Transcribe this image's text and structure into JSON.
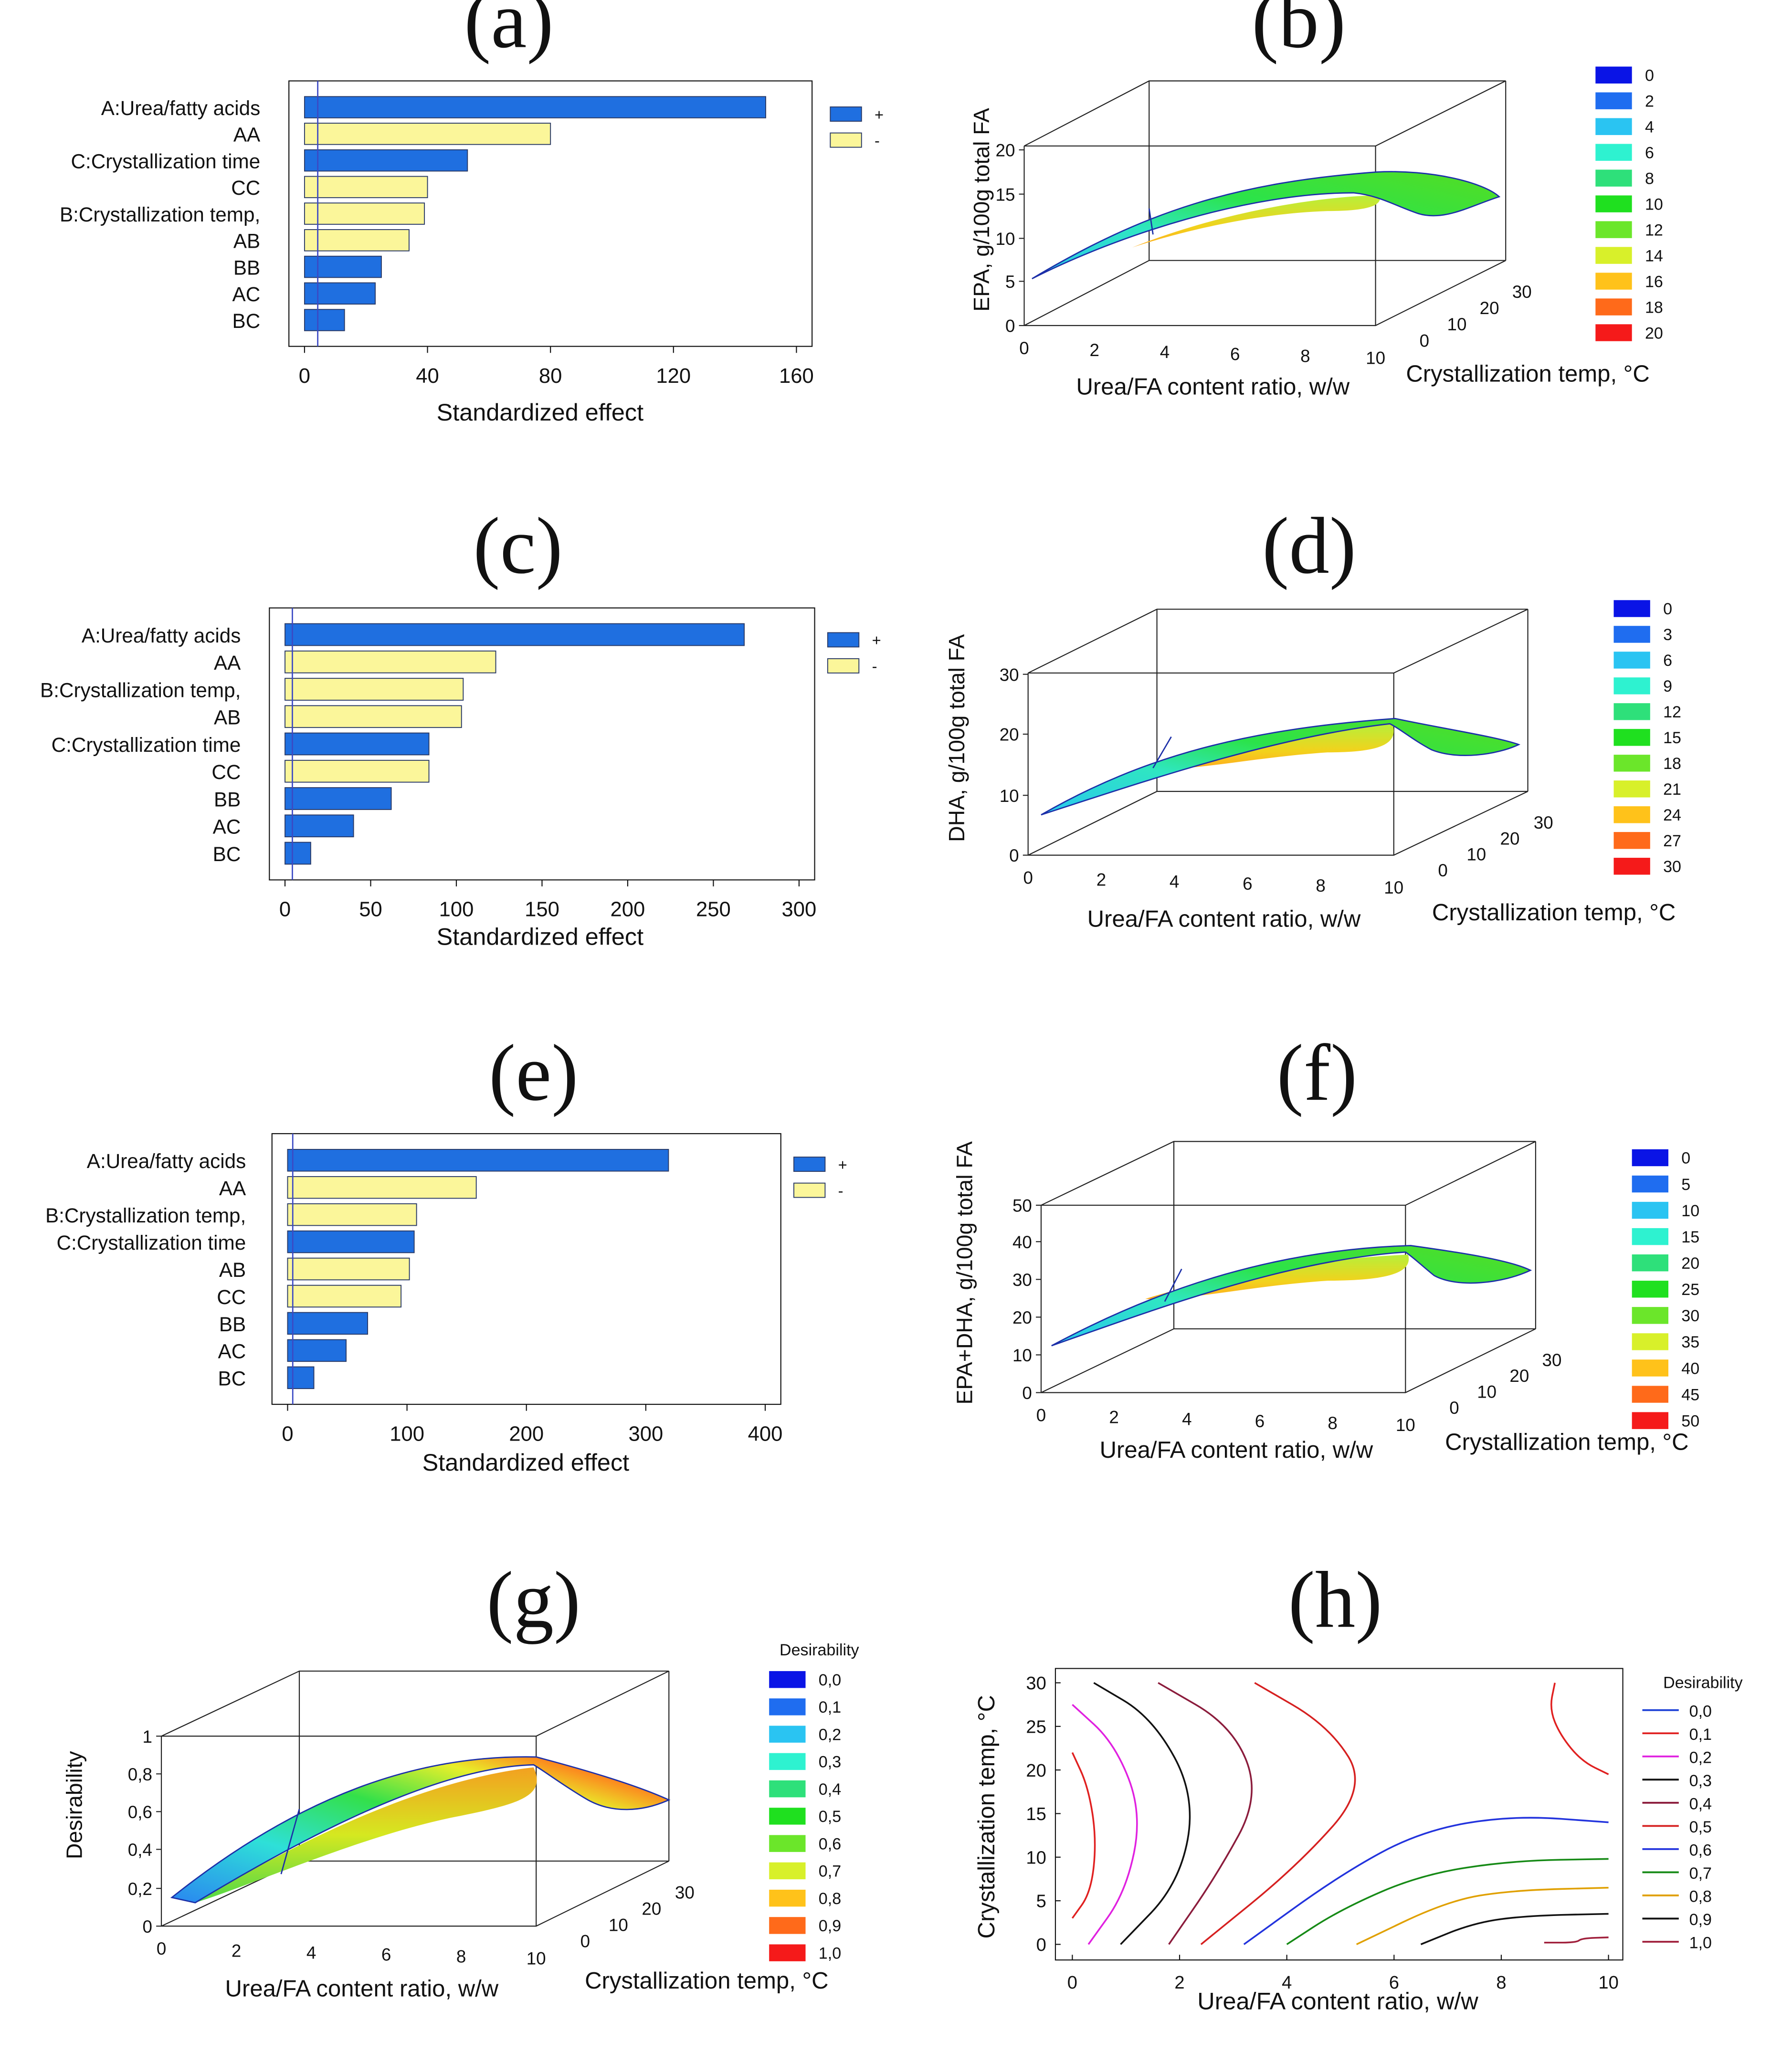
{
  "chart_data": [
    {
      "panel": "(a)",
      "type": "bar",
      "orientation": "horizontal",
      "title": "",
      "xlabel": "Standardized effect",
      "xlim": [
        0,
        160
      ],
      "xticks": [
        "0",
        "40",
        "80",
        "120",
        "160"
      ],
      "legend": [
        {
          "label": "+",
          "color": "#1f6fe0"
        },
        {
          "label": "-",
          "color": "#fbf69a"
        }
      ],
      "categories": [
        "A:Urea/fatty acids",
        "AA",
        "C:Crystallization time",
        "CC",
        "B:Crystallization temp,",
        "AB",
        "BB",
        "AC",
        "BC"
      ],
      "values": [
        150,
        80,
        53,
        40,
        39,
        34,
        25,
        23,
        13
      ],
      "signs": [
        "+",
        "-",
        "+",
        "-",
        "-",
        "-",
        "+",
        "+",
        "+"
      ],
      "reference_line": 4.3
    },
    {
      "panel": "(b)",
      "type": "surface3d",
      "zlabel": "EPA, g/100g total FA",
      "xlabel": "Urea/FA content ratio, w/w",
      "ylabel": "Crystallization temp, °C",
      "xticks": [
        "0",
        "2",
        "4",
        "6",
        "8",
        "10"
      ],
      "yticks": [
        "0",
        "10",
        "20",
        "30"
      ],
      "zticks": [
        "0",
        "5",
        "10",
        "15",
        "20"
      ],
      "zlim": [
        0,
        20
      ],
      "legend_title": "",
      "legend": [
        "0",
        "2",
        "4",
        "6",
        "8",
        "10",
        "12",
        "14",
        "16",
        "18",
        "20"
      ]
    },
    {
      "panel": "(c)",
      "type": "bar",
      "orientation": "horizontal",
      "xlabel": "Standardized effect",
      "xlim": [
        0,
        300
      ],
      "xticks": [
        "0",
        "50",
        "100",
        "150",
        "200",
        "250",
        "300"
      ],
      "legend": [
        {
          "label": "+",
          "color": "#1f6fe0"
        },
        {
          "label": "-",
          "color": "#fbf69a"
        }
      ],
      "categories": [
        "A:Urea/fatty acids",
        "AA",
        "B:Crystallization temp,",
        "AB",
        "C:Crystallization time",
        "CC",
        "BB",
        "AC",
        "BC"
      ],
      "values": [
        268,
        123,
        104,
        103,
        84,
        84,
        62,
        40,
        15
      ],
      "signs": [
        "+",
        "-",
        "-",
        "-",
        "+",
        "-",
        "+",
        "+",
        "+"
      ],
      "reference_line": 4.3
    },
    {
      "panel": "(d)",
      "type": "surface3d",
      "zlabel": "DHA, g/100g total FA",
      "xlabel": "Urea/FA content ratio, w/w",
      "ylabel": "Crystallization temp, °C",
      "xticks": [
        "0",
        "2",
        "4",
        "6",
        "8",
        "10"
      ],
      "yticks": [
        "0",
        "10",
        "20",
        "30"
      ],
      "zticks": [
        "0",
        "10",
        "20",
        "30"
      ],
      "zlim": [
        0,
        30
      ],
      "legend_title": "",
      "legend": [
        "0",
        "3",
        "6",
        "9",
        "12",
        "15",
        "18",
        "21",
        "24",
        "27",
        "30"
      ]
    },
    {
      "panel": "(e)",
      "type": "bar",
      "orientation": "horizontal",
      "xlabel": "Standardized effect",
      "xlim": [
        0,
        400
      ],
      "xticks": [
        "0",
        "100",
        "200",
        "300",
        "400"
      ],
      "legend": [
        {
          "label": "+",
          "color": "#1f6fe0"
        },
        {
          "label": "-",
          "color": "#fbf69a"
        }
      ],
      "categories": [
        "A:Urea/fatty acids",
        "AA",
        "B:Crystallization temp,",
        "C:Crystallization time",
        "AB",
        "CC",
        "BB",
        "AC",
        "BC"
      ],
      "values": [
        319,
        158,
        108,
        106,
        102,
        95,
        67,
        49,
        22
      ],
      "signs": [
        "+",
        "-",
        "-",
        "+",
        "-",
        "-",
        "+",
        "+",
        "+"
      ],
      "reference_line": 4.3
    },
    {
      "panel": "(f)",
      "type": "surface3d",
      "zlabel": "EPA+DHA, g/100g total FA",
      "xlabel": "Urea/FA content ratio, w/w",
      "ylabel": "Crystallization temp, °C",
      "xticks": [
        "0",
        "2",
        "4",
        "6",
        "8",
        "10"
      ],
      "yticks": [
        "0",
        "10",
        "20",
        "30"
      ],
      "zticks": [
        "0",
        "10",
        "20",
        "30",
        "40",
        "50"
      ],
      "zlim": [
        0,
        50
      ],
      "legend_title": "",
      "legend": [
        "0",
        "5",
        "10",
        "15",
        "20",
        "25",
        "30",
        "35",
        "40",
        "45",
        "50"
      ]
    },
    {
      "panel": "(g)",
      "type": "surface3d",
      "zlabel": "Desirability",
      "xlabel": "Urea/FA content ratio, w/w",
      "ylabel": "Crystallization temp, °C",
      "xticks": [
        "0",
        "2",
        "4",
        "6",
        "8",
        "10"
      ],
      "yticks": [
        "0",
        "10",
        "20",
        "30"
      ],
      "zticks": [
        "0",
        "0,2",
        "0,4",
        "0,6",
        "0,8",
        "1"
      ],
      "zlim": [
        0,
        1
      ],
      "legend_title": "Desirability",
      "legend": [
        "0,0",
        "0,1",
        "0,2",
        "0,3",
        "0,4",
        "0,5",
        "0,6",
        "0,7",
        "0,8",
        "0,9",
        "1,0"
      ]
    },
    {
      "panel": "(h)",
      "type": "contour",
      "xlabel": "Urea/FA content ratio, w/w",
      "ylabel": "Crystallization temp, °C",
      "xlim": [
        0,
        10
      ],
      "ylim": [
        0,
        30
      ],
      "xticks": [
        "0",
        "2",
        "4",
        "6",
        "8",
        "10"
      ],
      "yticks": [
        "0",
        "5",
        "10",
        "15",
        "20",
        "25",
        "30"
      ],
      "legend_title": "Desirability",
      "legend": [
        "0,0",
        "0,1",
        "0,2",
        "0,3",
        "0,4",
        "0,5",
        "0,6",
        "0,7",
        "0,8",
        "0,9",
        "1,0"
      ],
      "line_colors": [
        "#1a3fd6",
        "#e02020",
        "#e020e0",
        "#111111",
        "#8b1c3c",
        "#d62020",
        "#2233dd",
        "#168a16",
        "#e0a000",
        "#111111",
        "#a0203c"
      ],
      "contours": [
        {
          "level": "0,1",
          "points": [
            [
              9.0,
              30
            ],
            [
              8.9,
              27
            ],
            [
              9.1,
              24
            ],
            [
              9.5,
              21
            ],
            [
              10,
              19.5
            ]
          ]
        },
        {
          "level": "0,1",
          "points": [
            [
              0.0,
              22
            ],
            [
              0.3,
              18
            ],
            [
              0.45,
              12
            ],
            [
              0.35,
              6
            ],
            [
              0.0,
              3
            ]
          ]
        },
        {
          "level": "0,2",
          "points": [
            [
              0.0,
              27.5
            ],
            [
              0.8,
              23
            ],
            [
              1.3,
              15
            ],
            [
              1.0,
              6
            ],
            [
              0.3,
              0
            ]
          ]
        },
        {
          "level": "0,3",
          "points": [
            [
              0.4,
              30
            ],
            [
              1.5,
              26
            ],
            [
              2.3,
              17
            ],
            [
              2.0,
              7
            ],
            [
              0.9,
              0
            ]
          ]
        },
        {
          "level": "0,3",
          "points": [
            [
              10,
              3.5
            ],
            [
              8.5,
              3.3
            ],
            [
              7.5,
              2.5
            ],
            [
              6.5,
              0
            ]
          ]
        },
        {
          "level": "0,4",
          "points": [
            [
              1.6,
              30
            ],
            [
              3.0,
              25
            ],
            [
              3.5,
              17
            ],
            [
              2.7,
              8
            ],
            [
              1.8,
              0
            ]
          ]
        },
        {
          "level": "0,5",
          "points": [
            [
              3.4,
              30
            ],
            [
              4.8,
              25
            ],
            [
              5.5,
              18
            ],
            [
              4.2,
              9
            ],
            [
              2.4,
              0
            ]
          ]
        },
        {
          "level": "0,6",
          "points": [
            [
              10,
              14
            ],
            [
              8.2,
              14.8
            ],
            [
              6.5,
              13
            ],
            [
              5.0,
              8
            ],
            [
              3.2,
              0
            ]
          ]
        },
        {
          "level": "0,7",
          "points": [
            [
              10,
              9.8
            ],
            [
              8.2,
              9.6
            ],
            [
              6.5,
              8
            ],
            [
              5.0,
              4
            ],
            [
              4.0,
              0
            ]
          ]
        },
        {
          "level": "0,8",
          "points": [
            [
              10,
              6.5
            ],
            [
              8.2,
              6.2
            ],
            [
              7.0,
              5
            ],
            [
              5.3,
              0
            ]
          ]
        },
        {
          "level": "1,0",
          "points": [
            [
              8.8,
              0.2
            ],
            [
              9.4,
              0.2
            ],
            [
              9.5,
              0.7
            ],
            [
              10,
              0.8
            ]
          ]
        }
      ]
    }
  ]
}
